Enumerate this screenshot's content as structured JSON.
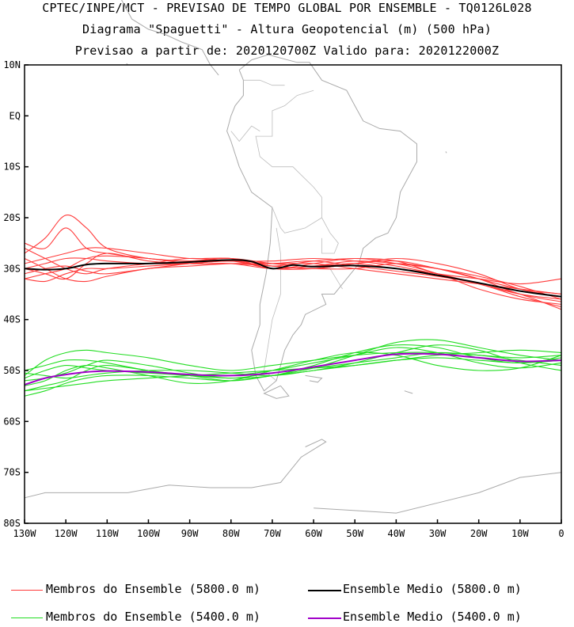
{
  "header": {
    "line1": "CPTEC/INPE/MCT - PREVISAO DE TEMPO GLOBAL POR ENSEMBLE - TQ0126L028",
    "line2": "Diagrama \"Spaguetti\" - Altura Geopotencial (m) (500 hPa)",
    "line3": "Previsao a partir de: 2020120700Z  Valido para: 2020122000Z"
  },
  "chart_data": {
    "type": "line",
    "xlabel": "",
    "ylabel": "",
    "x_range_deg": [
      -130,
      0
    ],
    "y_range_deg": [
      -80,
      10
    ],
    "x_ticks": [
      "130W",
      "120W",
      "110W",
      "100W",
      "90W",
      "80W",
      "70W",
      "60W",
      "50W",
      "40W",
      "30W",
      "20W",
      "10W",
      "0"
    ],
    "y_ticks": [
      "10N",
      "EQ",
      "10S",
      "20S",
      "30S",
      "40S",
      "50S",
      "60S",
      "70S",
      "80S"
    ],
    "series": [
      {
        "name": "Membros do Ensemble (5800.0 m)",
        "color": "#ff3b3b",
        "members": [
          {
            "x": [
              -130,
              -125,
              -120,
              -115,
              -110,
              -100,
              -90,
              -80,
              -70,
              -60,
              -50,
              -40,
              -30,
              -20,
              -10,
              0
            ],
            "y": [
              -25,
              -26,
              -22,
              -26,
              -27,
              -28,
              -28.5,
              -28,
              -29,
              -29.5,
              -29,
              -30,
              -31,
              -33,
              -35,
              -36
            ]
          },
          {
            "x": [
              -130,
              -125,
              -120,
              -115,
              -110,
              -100,
              -90,
              -80,
              -70,
              -60,
              -50,
              -40,
              -30,
              -20,
              -10,
              0
            ],
            "y": [
              -27,
              -24,
              -19.5,
              -22,
              -26,
              -28,
              -28.5,
              -28,
              -30,
              -29,
              -28,
              -29,
              -31,
              -34,
              -36,
              -37
            ]
          },
          {
            "x": [
              -130,
              -125,
              -120,
              -115,
              -110,
              -100,
              -90,
              -80,
              -70,
              -60,
              -50,
              -40,
              -30,
              -20,
              -10,
              0
            ],
            "y": [
              -30,
              -31,
              -32,
              -29,
              -27,
              -28.5,
              -29,
              -29,
              -29.5,
              -30,
              -29,
              -28.5,
              -30,
              -32,
              -34,
              -35
            ]
          },
          {
            "x": [
              -130,
              -125,
              -120,
              -115,
              -110,
              -100,
              -90,
              -80,
              -70,
              -60,
              -50,
              -40,
              -30,
              -20,
              -10,
              0
            ],
            "y": [
              -32,
              -32.5,
              -31,
              -30,
              -30,
              -29.5,
              -29,
              -28.5,
              -29.5,
              -28.5,
              -28,
              -28.5,
              -31,
              -33,
              -35,
              -38
            ]
          },
          {
            "x": [
              -130,
              -125,
              -120,
              -115,
              -110,
              -100,
              -90,
              -80,
              -70,
              -60,
              -50,
              -40,
              -30,
              -20,
              -10,
              0
            ],
            "y": [
              -29,
              -28,
              -27,
              -26,
              -26,
              -27,
              -28,
              -28,
              -29.5,
              -30,
              -30,
              -29,
              -30,
              -32,
              -35,
              -36.5
            ]
          },
          {
            "x": [
              -130,
              -125,
              -120,
              -115,
              -110,
              -100,
              -90,
              -80,
              -70,
              -60,
              -50,
              -40,
              -30,
              -20,
              -10,
              0
            ],
            "y": [
              -31,
              -30,
              -29.5,
              -30.5,
              -31,
              -30,
              -29,
              -28.5,
              -29,
              -29,
              -30,
              -31,
              -32,
              -33,
              -34,
              -35
            ]
          },
          {
            "x": [
              -130,
              -125,
              -120,
              -115,
              -110,
              -100,
              -90,
              -80,
              -70,
              -60,
              -50,
              -40,
              -30,
              -20,
              -10,
              0
            ],
            "y": [
              -26,
              -28,
              -30,
              -31,
              -30,
              -29,
              -28,
              -28.5,
              -28.5,
              -28,
              -28.5,
              -29.5,
              -31,
              -32,
              -33,
              -32
            ]
          },
          {
            "x": [
              -130,
              -125,
              -120,
              -115,
              -110,
              -100,
              -90,
              -80,
              -70,
              -60,
              -50,
              -40,
              -30,
              -20,
              -10,
              0
            ],
            "y": [
              -32,
              -31,
              -30,
              -28,
              -27.5,
              -28,
              -29,
              -29,
              -30,
              -29.5,
              -28.5,
              -29,
              -30,
              -31.5,
              -33.5,
              -36
            ]
          },
          {
            "x": [
              -130,
              -125,
              -120,
              -115,
              -110,
              -100,
              -90,
              -80,
              -70,
              -60,
              -50,
              -40,
              -30,
              -20,
              -10,
              0
            ],
            "y": [
              -28,
              -30,
              -32,
              -32.5,
              -31.5,
              -30,
              -29.5,
              -29,
              -29,
              -28.5,
              -29.5,
              -30.5,
              -31.5,
              -33,
              -35.5,
              -37.5
            ]
          },
          {
            "x": [
              -130,
              -125,
              -120,
              -115,
              -110,
              -100,
              -90,
              -80,
              -70,
              -60,
              -50,
              -40,
              -30,
              -20,
              -10,
              0
            ],
            "y": [
              -30,
              -29,
              -28,
              -28,
              -28.5,
              -29,
              -29,
              -28.5,
              -30,
              -30,
              -29,
              -28,
              -29,
              -31,
              -34,
              -35.5
            ]
          }
        ]
      },
      {
        "name": "Ensemble Medio (5800.0 m)",
        "color": "#000000",
        "x": [
          -130,
          -125,
          -120,
          -115,
          -110,
          -100,
          -90,
          -80,
          -75,
          -70,
          -65,
          -60,
          -50,
          -40,
          -30,
          -20,
          -10,
          0
        ],
        "y": [
          -30,
          -30.2,
          -30,
          -29.2,
          -29,
          -29,
          -28.7,
          -28.3,
          -28.6,
          -30,
          -29.3,
          -29.6,
          -29.4,
          -30,
          -31.3,
          -32.8,
          -34.4,
          -35.5
        ]
      },
      {
        "name": "Membros do Ensemble (5400.0 m)",
        "color": "#22dd22",
        "members": [
          {
            "x": [
              -130,
              -125,
              -120,
              -115,
              -110,
              -100,
              -90,
              -80,
              -70,
              -60,
              -50,
              -40,
              -30,
              -20,
              -10,
              0
            ],
            "y": [
              -51,
              -48,
              -46.5,
              -46,
              -46.5,
              -47.5,
              -49,
              -50,
              -49,
              -48,
              -47,
              -46.5,
              -46.5,
              -47,
              -47.5,
              -47
            ]
          },
          {
            "x": [
              -130,
              -125,
              -120,
              -115,
              -110,
              -100,
              -90,
              -80,
              -70,
              -60,
              -50,
              -40,
              -30,
              -20,
              -10,
              0
            ],
            "y": [
              -54,
              -53,
              -52,
              -50,
              -49,
              -50,
              -51,
              -52,
              -51,
              -49.5,
              -47,
              -44.5,
              -44,
              -45.5,
              -47,
              -48
            ]
          },
          {
            "x": [
              -130,
              -125,
              -120,
              -115,
              -110,
              -100,
              -90,
              -80,
              -70,
              -60,
              -50,
              -40,
              -30,
              -20,
              -10,
              0
            ],
            "y": [
              -52,
              -51.5,
              -50.5,
              -49,
              -48,
              -49,
              -50.5,
              -51.5,
              -50.5,
              -49.5,
              -48.5,
              -47.5,
              -46.5,
              -47,
              -48,
              -49
            ]
          },
          {
            "x": [
              -130,
              -125,
              -120,
              -115,
              -110,
              -100,
              -90,
              -80,
              -70,
              -60,
              -50,
              -40,
              -30,
              -20,
              -10,
              0
            ],
            "y": [
              -50,
              -49,
              -48,
              -48,
              -48.5,
              -50,
              -51,
              -51,
              -50,
              -48.5,
              -47,
              -45.5,
              -46.5,
              -48.5,
              -49.5,
              -48.5
            ]
          },
          {
            "x": [
              -130,
              -125,
              -120,
              -115,
              -110,
              -100,
              -90,
              -80,
              -70,
              -60,
              -50,
              -40,
              -30,
              -20,
              -10,
              0
            ],
            "y": [
              -55,
              -54,
              -52.5,
              -51.5,
              -51,
              -51,
              -51.5,
              -52,
              -51,
              -50,
              -48.5,
              -46.5,
              -45,
              -46,
              -48.5,
              -50
            ]
          },
          {
            "x": [
              -130,
              -125,
              -120,
              -115,
              -110,
              -100,
              -90,
              -80,
              -70,
              -60,
              -50,
              -40,
              -30,
              -20,
              -10,
              0
            ],
            "y": [
              -50.5,
              -51,
              -51.5,
              -51,
              -50.5,
              -50,
              -50,
              -50.5,
              -51,
              -50,
              -49,
              -48,
              -47.5,
              -48,
              -48.5,
              -48
            ]
          },
          {
            "x": [
              -130,
              -125,
              -120,
              -115,
              -110,
              -100,
              -90,
              -80,
              -70,
              -60,
              -50,
              -40,
              -30,
              -20,
              -10,
              0
            ],
            "y": [
              -53,
              -52,
              -50,
              -49,
              -49.5,
              -51,
              -52.5,
              -52,
              -50,
              -48,
              -46.5,
              -47,
              -49,
              -50,
              -49.5,
              -47
            ]
          },
          {
            "x": [
              -130,
              -125,
              -120,
              -115,
              -110,
              -100,
              -90,
              -80,
              -70,
              -60,
              -50,
              -40,
              -30,
              -20,
              -10,
              0
            ],
            "y": [
              -51.5,
              -50,
              -49,
              -49.5,
              -50,
              -50.5,
              -51,
              -51.5,
              -51,
              -49,
              -46.5,
              -45,
              -45.5,
              -47.5,
              -48.5,
              -47.5
            ]
          },
          {
            "x": [
              -130,
              -125,
              -120,
              -115,
              -110,
              -100,
              -90,
              -80,
              -70,
              -60,
              -50,
              -40,
              -30,
              -20,
              -10,
              0
            ],
            "y": [
              -54,
              -53.5,
              -53,
              -52.5,
              -52,
              -51.5,
              -51,
              -50.5,
              -50,
              -49.5,
              -49,
              -48,
              -47,
              -46.5,
              -46,
              -46.5
            ]
          }
        ]
      },
      {
        "name": "Ensemble Medio (5400.0 m)",
        "color": "#a000c8",
        "x": [
          -130,
          -125,
          -120,
          -115,
          -110,
          -100,
          -90,
          -80,
          -70,
          -60,
          -50,
          -40,
          -30,
          -20,
          -10,
          0
        ],
        "y": [
          -52.8,
          -51.5,
          -50.8,
          -50.3,
          -50.1,
          -50.3,
          -50.8,
          -51,
          -50.5,
          -49.3,
          -48,
          -46.8,
          -46.8,
          -47.5,
          -48.2,
          -48
        ]
      }
    ]
  },
  "legend": {
    "red_members": "Membros do Ensemble (5800.0 m)",
    "black_mean": "Ensemble Medio (5800.0 m)",
    "green_members": "Membros do Ensemble (5400.0 m)",
    "purple_mean": "Ensemble Medio (5400.0 m)"
  },
  "colors": {
    "coastline": "#aaaaaa",
    "red": "#ff3b3b",
    "black": "#000000",
    "green": "#22dd22",
    "purple": "#a000c8"
  }
}
